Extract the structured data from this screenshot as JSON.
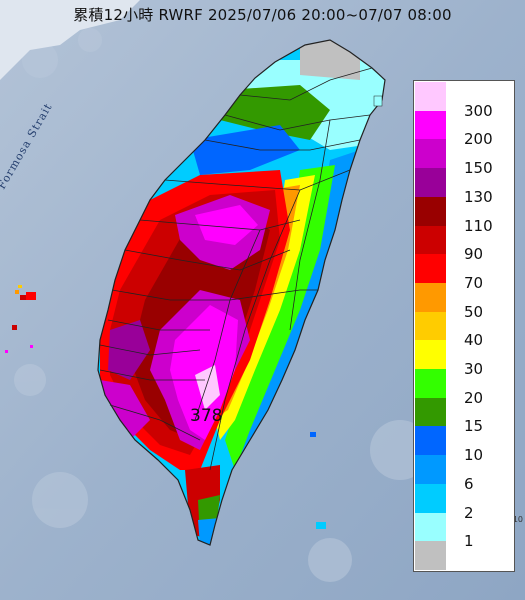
{
  "title": "累積12小時 RWRF 2025/07/06 20:00~07/07 08:00",
  "strait_label": "Formosa Strait",
  "max_label": "378",
  "edge_label": "10",
  "legend": {
    "levels": [
      {
        "label": "300",
        "color": "#ffc8ff"
      },
      {
        "label": "200",
        "color": "#ff00ff"
      },
      {
        "label": "150",
        "color": "#cc00cc"
      },
      {
        "label": "130",
        "color": "#990099"
      },
      {
        "label": "110",
        "color": "#990000"
      },
      {
        "label": "90",
        "color": "#cc0000"
      },
      {
        "label": "70",
        "color": "#ff0000"
      },
      {
        "label": "50",
        "color": "#ff9900"
      },
      {
        "label": "40",
        "color": "#ffcc00"
      },
      {
        "label": "30",
        "color": "#ffff00"
      },
      {
        "label": "20",
        "color": "#33ff00"
      },
      {
        "label": "15",
        "color": "#339900"
      },
      {
        "label": "10",
        "color": "#0066ff"
      },
      {
        "label": "6",
        "color": "#0099ff"
      },
      {
        "label": "2",
        "color": "#00ccff"
      },
      {
        "label": "1",
        "color": "#99ffff"
      },
      {
        "label": "",
        "color": "#c0c0c0"
      }
    ]
  },
  "colors": {
    "sea": "#a4b8d1",
    "land_border": "#222222"
  }
}
